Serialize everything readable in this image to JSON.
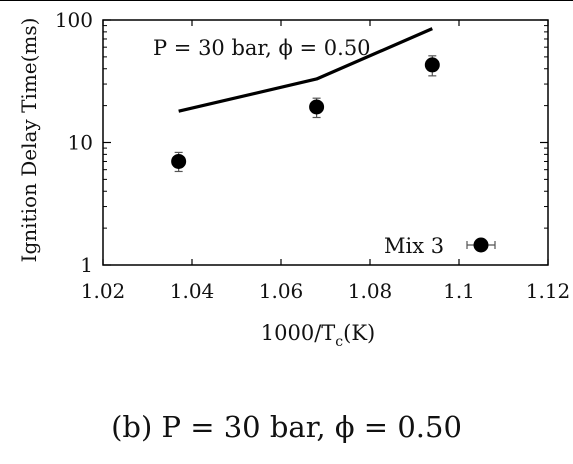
{
  "chart_data": {
    "type": "scatter",
    "xlabel": "1000/T",
    "xlabel_sub": "c",
    "xlabel_unit": "(K)",
    "ylabel": "Ignition Delay Time(ms)",
    "xlim": [
      1.02,
      1.12
    ],
    "ylim": [
      1,
      100
    ],
    "y_scale": "log",
    "x_ticks": [
      "1.02",
      "1.04",
      "1.06",
      "1.08",
      "1.1",
      "1.12"
    ],
    "x_tick_values": [
      1.02,
      1.04,
      1.06,
      1.08,
      1.1,
      1.12
    ],
    "y_ticks": [
      "1",
      "10",
      "100"
    ],
    "y_tick_values": [
      1,
      10,
      100
    ],
    "annotation": "P = 30 bar, ϕ = 0.50",
    "legend": {
      "label": "Mix 3",
      "placement": "bottom-right"
    },
    "series": [
      {
        "name": "Mix 3",
        "kind": "markers",
        "x": [
          1.037,
          1.068,
          1.094
        ],
        "y": [
          7.0,
          19.5,
          43.0
        ],
        "y_err_low": [
          5.8,
          16.0,
          35.0
        ],
        "y_err_high": [
          8.3,
          23.0,
          51.0
        ]
      },
      {
        "kind": "line",
        "x": [
          1.037,
          1.068,
          1.094
        ],
        "y": [
          18.0,
          33.0,
          85.0
        ]
      }
    ],
    "grid": false
  },
  "caption": "(b) P = 30 bar, ϕ = 0.50"
}
